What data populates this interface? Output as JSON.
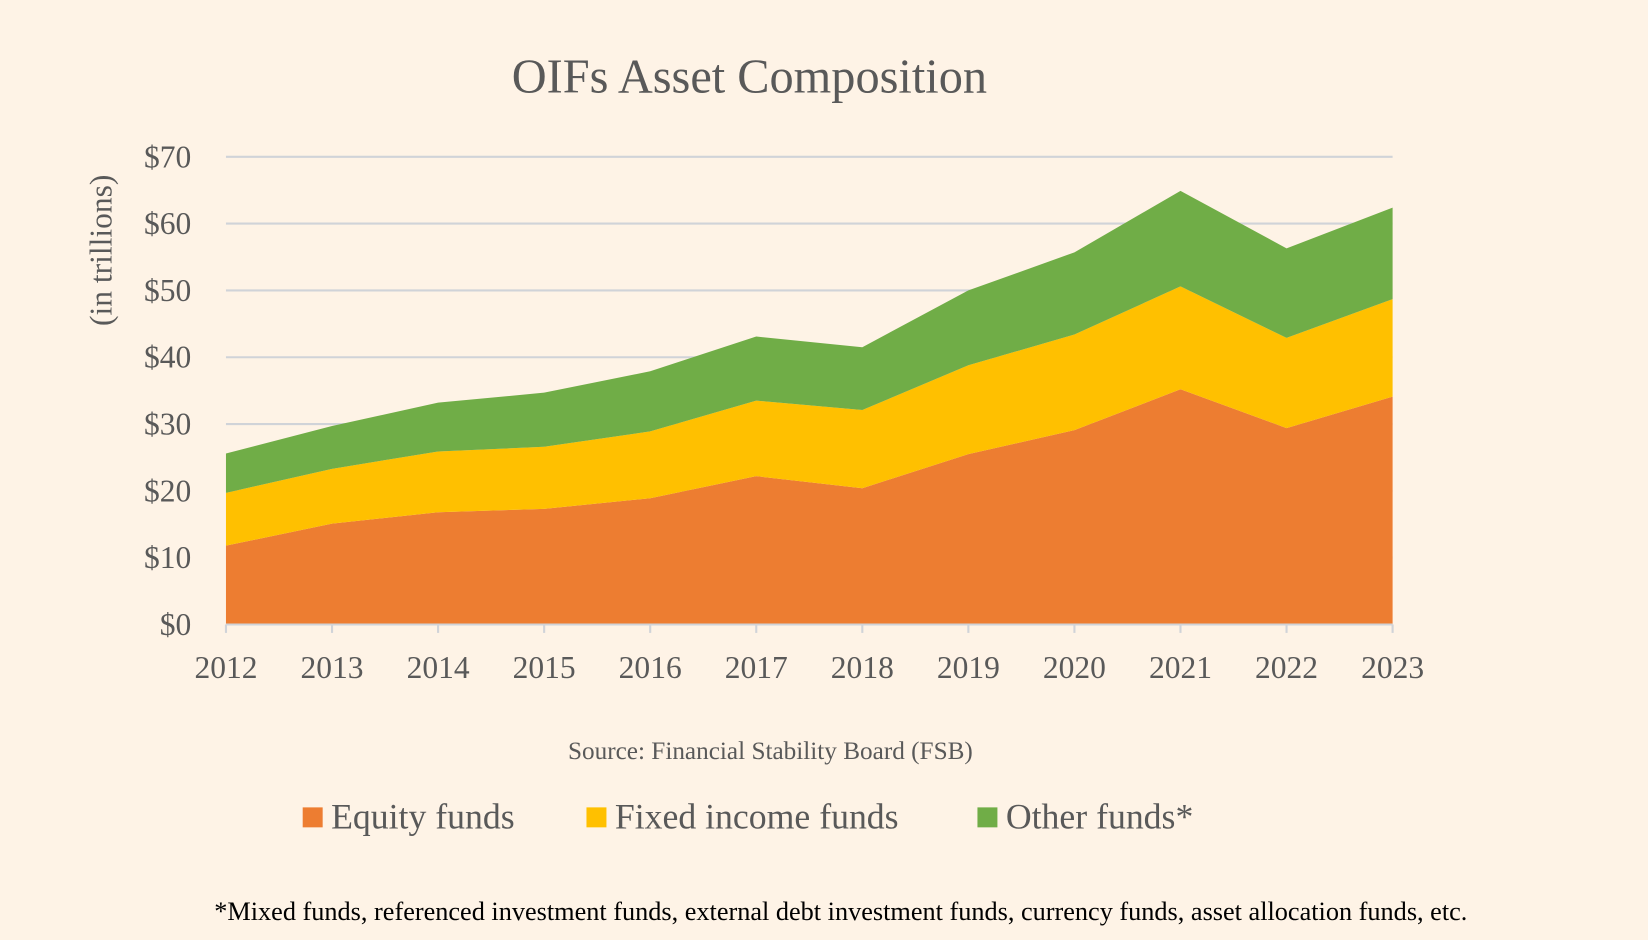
{
  "chart_data": {
    "type": "area",
    "stacked": true,
    "title": "OIFs Asset Composition",
    "ylabel": "(in trillions)",
    "xlabel": "",
    "categories": [
      "2012",
      "2013",
      "2014",
      "2015",
      "2016",
      "2017",
      "2018",
      "2019",
      "2020",
      "2021",
      "2022",
      "2023"
    ],
    "ylim": [
      0,
      70
    ],
    "yticks": [
      0,
      10,
      20,
      30,
      40,
      50,
      60,
      70
    ],
    "ytick_labels": [
      "$0",
      "$10",
      "$20",
      "$30",
      "$40",
      "$50",
      "$60",
      "$70"
    ],
    "grid": true,
    "series": [
      {
        "name": "Equity funds",
        "color": "#ed7d31",
        "values": [
          11.8,
          15.1,
          16.8,
          17.3,
          18.9,
          22.2,
          20.4,
          25.5,
          29.1,
          35.2,
          29.4,
          34.1
        ]
      },
      {
        "name": "Fixed income funds",
        "color": "#ffc000",
        "values": [
          7.9,
          8.2,
          9.1,
          9.3,
          10.0,
          11.3,
          11.7,
          13.3,
          14.3,
          15.4,
          13.5,
          14.6
        ]
      },
      {
        "name": "Other funds*",
        "color": "#70ad47",
        "values": [
          5.9,
          6.4,
          7.3,
          8.1,
          9.0,
          9.6,
          9.4,
          11.2,
          12.3,
          14.3,
          13.4,
          13.7
        ]
      }
    ],
    "legend_position": "bottom",
    "source": "Source: Financial Stability Board (FSB)",
    "footnote": "*Mixed funds, referenced investment funds, external debt investment funds, currency funds, asset allocation funds, etc."
  }
}
